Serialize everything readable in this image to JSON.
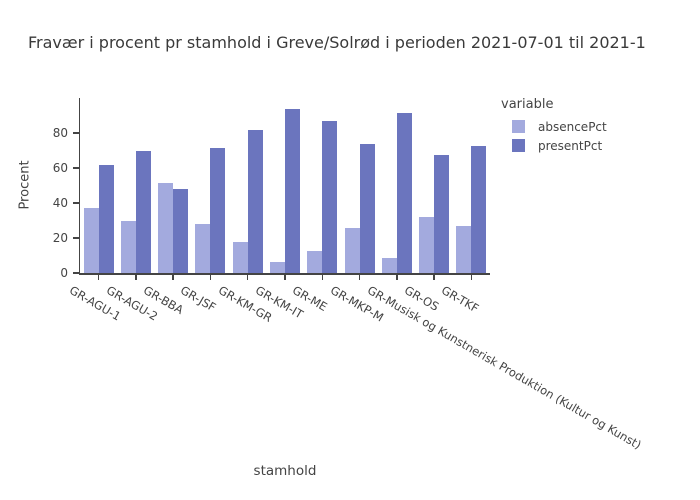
{
  "chart_data": {
    "type": "bar",
    "title": "Fravær i procent pr stamhold i Greve/Solrød i perioden 2021-07-01 til 2021-1",
    "xlabel": "stamhold",
    "ylabel": "Procent",
    "legend_title": "variable",
    "legend_position": "top-right",
    "grid": false,
    "background": "#ffffff",
    "axis_color": "#444444",
    "text_color": "#444444",
    "title_color": "#3a3a3a",
    "xtick_angle_deg": 30,
    "ylim": [
      0,
      100
    ],
    "yticks": [
      0,
      20,
      40,
      60,
      80
    ],
    "categories": [
      "GR-AGU-1",
      "GR-AGU-2",
      "GR-BBA",
      "GR-JSF",
      "GR-KM-GR",
      "GR-KM-IT",
      "GR-ME",
      "GR-MKP-M",
      "GR-Musisk og Kunstnerisk Produktion (Kultur og Kunst)",
      "GR-OS",
      "GR-TKF"
    ],
    "series": [
      {
        "name": "absencePct",
        "color": "#A3AADE",
        "values": [
          37,
          30,
          51.5,
          28,
          17.5,
          6.5,
          12.5,
          26,
          8.5,
          32,
          27
        ]
      },
      {
        "name": "presentPct",
        "color": "#6B75BE",
        "values": [
          62,
          69.5,
          48,
          71.5,
          82,
          93.5,
          87,
          73.5,
          91.5,
          67.5,
          72.5
        ]
      }
    ]
  }
}
